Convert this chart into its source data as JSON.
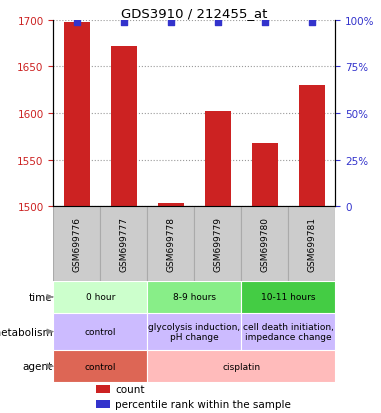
{
  "title": "GDS3910 / 212455_at",
  "samples": [
    "GSM699776",
    "GSM699777",
    "GSM699778",
    "GSM699779",
    "GSM699780",
    "GSM699781"
  ],
  "bar_values": [
    1697,
    1672,
    1503,
    1602,
    1568,
    1630
  ],
  "percentile_values": [
    99,
    99,
    99,
    99,
    99,
    99
  ],
  "ylim_left": [
    1500,
    1700
  ],
  "ylim_right": [
    0,
    100
  ],
  "yticks_left": [
    1500,
    1550,
    1600,
    1650,
    1700
  ],
  "yticks_right": [
    0,
    25,
    50,
    75,
    100
  ],
  "bar_color": "#cc2222",
  "percentile_color": "#3333cc",
  "grid_color": "#999999",
  "sample_bg": "#cccccc",
  "sample_border": "#aaaaaa",
  "time_row": {
    "label": "time",
    "groups": [
      {
        "text": "0 hour",
        "span": [
          0,
          2
        ],
        "color": "#ccffcc"
      },
      {
        "text": "8-9 hours",
        "span": [
          2,
          4
        ],
        "color": "#88ee88"
      },
      {
        "text": "10-11 hours",
        "span": [
          4,
          6
        ],
        "color": "#44cc44"
      }
    ]
  },
  "metabolism_row": {
    "label": "metabolism",
    "groups": [
      {
        "text": "control",
        "span": [
          0,
          2
        ],
        "color": "#ccbbff"
      },
      {
        "text": "glycolysis induction,\npH change",
        "span": [
          2,
          4
        ],
        "color": "#ccbbff"
      },
      {
        "text": "cell death initiation,\nimpedance change",
        "span": [
          4,
          6
        ],
        "color": "#ccbbff"
      }
    ]
  },
  "agent_row": {
    "label": "agent",
    "groups": [
      {
        "text": "control",
        "span": [
          0,
          2
        ],
        "color": "#dd6655"
      },
      {
        "text": "cisplatin",
        "span": [
          2,
          6
        ],
        "color": "#ffbbbb"
      }
    ]
  },
  "legend_items": [
    {
      "color": "#cc2222",
      "label": "count"
    },
    {
      "color": "#3333cc",
      "label": "percentile rank within the sample"
    }
  ]
}
